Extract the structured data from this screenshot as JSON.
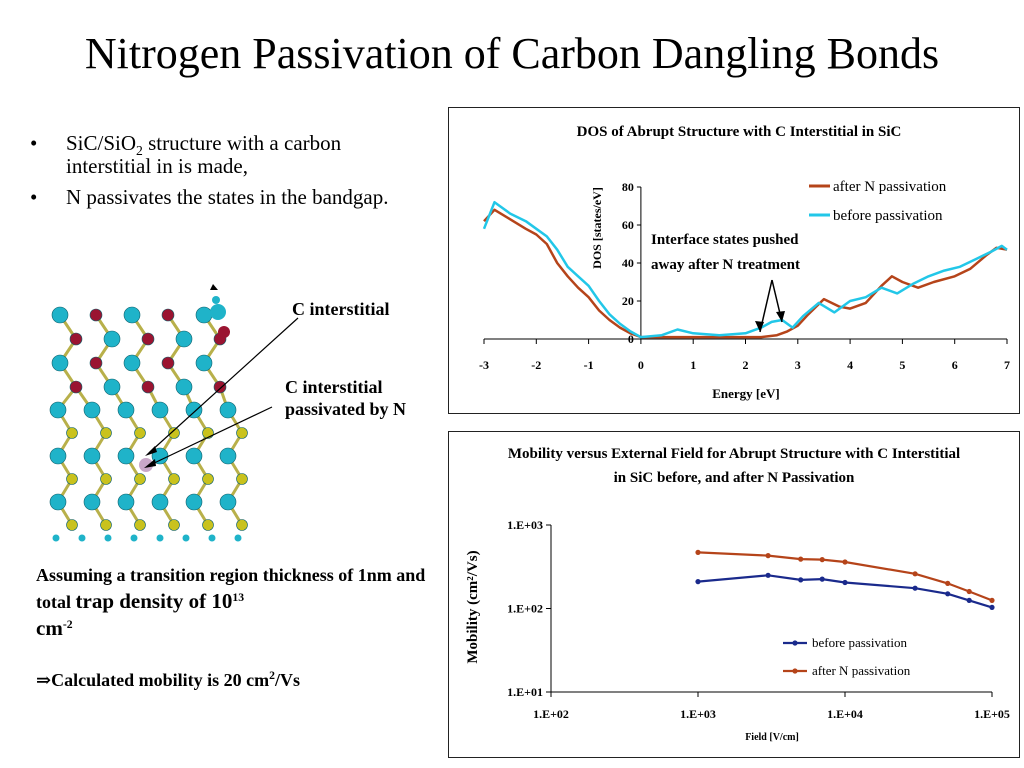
{
  "title": "Nitrogen Passivation of Carbon Dangling Bonds",
  "bullets": [
    {
      "pre": "SiC/SiO",
      "sub": "2",
      "post": " structure with a carbon interstitial in is made,"
    },
    {
      "pre": "N passivates the states in the bandgap.",
      "sub": "",
      "post": ""
    }
  ],
  "bullet_symbol": "•",
  "molecule_labels": {
    "interstitial": "C interstitial",
    "passivated": "C interstitial passivated by N"
  },
  "note": {
    "line1": "Assuming a transition region thickness of 1nm and total ",
    "line1_big": "trap density of 10",
    "exp": "13",
    "unit": "cm",
    "unit_exp": "-2"
  },
  "calc": {
    "arrow": "⇒",
    "text": "Calculated mobility is 20 cm",
    "exp": "2",
    "tail": "/Vs"
  },
  "chart_data": [
    {
      "type": "line",
      "title": "DOS of Abrupt Structure with C Interstitial in SiC",
      "xlabel": "Energy [eV]",
      "ylabel": "DOS [states/eV]",
      "xlim": [
        -3,
        7
      ],
      "ylim": [
        0,
        80
      ],
      "xticks": [
        "-3",
        "-2",
        "-1",
        "0",
        "1",
        "2",
        "3",
        "4",
        "5",
        "6",
        "7"
      ],
      "yticks": [
        "0",
        "20",
        "40",
        "60",
        "80"
      ],
      "legend_position": "top-right",
      "annotation": "Interface states pushed away after N treatment",
      "series": [
        {
          "name": "after N passivation",
          "color": "#b5441a",
          "x": [
            -3,
            -2.8,
            -2.5,
            -2.2,
            -2,
            -1.8,
            -1.6,
            -1.4,
            -1.2,
            -1,
            -0.8,
            -0.6,
            -0.4,
            -0.2,
            0,
            0.4,
            0.8,
            1.2,
            1.6,
            2,
            2.3,
            2.6,
            2.8,
            3,
            3.2,
            3.5,
            3.8,
            4,
            4.3,
            4.6,
            4.8,
            5,
            5.3,
            5.6,
            6,
            6.3,
            6.6,
            6.8,
            7
          ],
          "y": [
            62,
            68,
            63,
            58,
            55,
            50,
            40,
            33,
            27,
            22,
            15,
            10,
            6,
            3,
            1,
            1,
            1,
            1,
            1,
            1,
            1,
            2,
            4,
            7,
            13,
            21,
            17,
            16,
            19,
            28,
            33,
            30,
            27,
            30,
            33,
            37,
            44,
            48,
            47
          ]
        },
        {
          "name": "before passivation",
          "color": "#22c7e8",
          "x": [
            -3,
            -2.8,
            -2.5,
            -2.2,
            -2,
            -1.8,
            -1.6,
            -1.4,
            -1.2,
            -1,
            -0.8,
            -0.6,
            -0.4,
            -0.2,
            0,
            0.4,
            0.7,
            1,
            1.5,
            2,
            2.3,
            2.5,
            2.7,
            2.9,
            3.1,
            3.4,
            3.7,
            4,
            4.3,
            4.6,
            4.9,
            5.2,
            5.5,
            5.8,
            6.1,
            6.4,
            6.7,
            6.9,
            7
          ],
          "y": [
            58,
            72,
            66,
            62,
            58,
            54,
            47,
            38,
            33,
            28,
            20,
            13,
            8,
            4,
            1,
            2,
            5,
            3,
            2,
            3,
            6,
            9,
            10,
            6,
            12,
            19,
            14,
            20,
            22,
            27,
            24,
            29,
            33,
            36,
            38,
            42,
            46,
            49,
            47
          ]
        }
      ]
    },
    {
      "type": "line",
      "title": "Mobility versus External Field for Abrupt Structure with C Interstitial in SiC before, and after N Passivation",
      "xlabel": "Field [V/cm]",
      "ylabel": "Mobility (cm²/Vs)",
      "xscale": "log",
      "yscale": "log",
      "xlim": [
        100,
        100000
      ],
      "ylim": [
        10,
        1000
      ],
      "xticks": [
        "1.E+02",
        "1.E+03",
        "1.E+04",
        "1.E+05"
      ],
      "yticks": [
        "1.E+01",
        "1.E+02",
        "1.E+03"
      ],
      "legend_position": "bottom-right",
      "series": [
        {
          "name": "before passivation",
          "color": "#1a2a8c",
          "x": [
            1000,
            3000,
            5000,
            7000,
            10000,
            30000,
            50000,
            70000,
            100000
          ],
          "y": [
            210,
            250,
            220,
            225,
            205,
            175,
            150,
            125,
            103
          ]
        },
        {
          "name": "after N passivation",
          "color": "#b5441a",
          "x": [
            1000,
            3000,
            5000,
            7000,
            10000,
            30000,
            50000,
            70000,
            100000
          ],
          "y": [
            470,
            430,
            390,
            385,
            360,
            260,
            200,
            160,
            125
          ]
        }
      ]
    }
  ]
}
